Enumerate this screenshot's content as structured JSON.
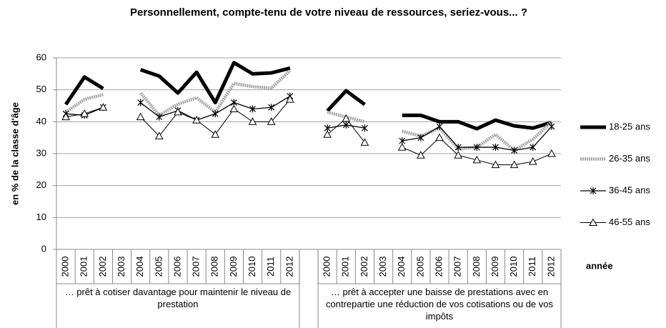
{
  "chart_data": {
    "type": "line",
    "title": "Personnellement, compte-tenu de votre niveau de ressources, seriez-vous... ?",
    "y_label": "en % de la classe d'âge",
    "x_label": "année",
    "groups": [
      {
        "label": "… prêt à cotiser davantage pour maintenir le niveau de prestation",
        "categories": [
          "2000",
          "2001",
          "2002",
          "2003",
          "2004",
          "2005",
          "2006",
          "2007",
          "2008",
          "2009",
          "2010",
          "2011",
          "2012"
        ]
      },
      {
        "label": "… prêt à accepter une baisse de prestations avec en contrepartie une réduction de vos cotisations ou de vos impôts",
        "categories": [
          "2000",
          "2001",
          "2002",
          "2003",
          "2004",
          "2005",
          "2006",
          "2007",
          "2008",
          "2009",
          "2010",
          "2011",
          "2012"
        ]
      }
    ],
    "ylim": [
      0,
      60
    ],
    "yticks": [
      0,
      10,
      20,
      30,
      40,
      50,
      60
    ],
    "grid": true,
    "legend": "right",
    "series": [
      {
        "name": "18-25 ans",
        "color": "#000000",
        "marker": "none",
        "values": [
          45.4,
          54,
          50.4,
          null,
          56.3,
          54.3,
          49,
          55.5,
          46,
          58.5,
          55,
          55.3,
          56.8,
          43.4,
          49.7,
          45.4,
          null,
          42,
          42,
          40,
          40,
          37.8,
          40.5,
          38.7,
          38,
          39.8
        ]
      },
      {
        "name": "26-35 ans",
        "color": "#a6a6a6",
        "marker": "none",
        "values": [
          43,
          47,
          48.5,
          null,
          49,
          42,
          45.5,
          47.5,
          43,
          52,
          51,
          50.5,
          56,
          43,
          41.5,
          40,
          null,
          37,
          35.5,
          38,
          31.5,
          32,
          36,
          31,
          34.5,
          40
        ]
      },
      {
        "name": "36-45 ans",
        "color": "#000000",
        "marker": "asterisk",
        "values": [
          42.5,
          42,
          44.5,
          null,
          46,
          41.5,
          43.5,
          40.5,
          42.5,
          46,
          44,
          44.5,
          48,
          38,
          39,
          38,
          null,
          34,
          35,
          38.5,
          32,
          32,
          32,
          31,
          32,
          38.5
        ]
      },
      {
        "name": "46-55 ans",
        "color": "#000000",
        "marker": "triangle",
        "values": [
          41.5,
          42.5,
          44.5,
          null,
          41.5,
          35.5,
          43,
          40.5,
          36,
          44,
          40,
          40,
          47,
          36,
          41,
          33.5,
          null,
          32,
          29.5,
          35,
          29.5,
          28,
          26.5,
          26.5,
          27.5,
          30
        ]
      }
    ]
  }
}
